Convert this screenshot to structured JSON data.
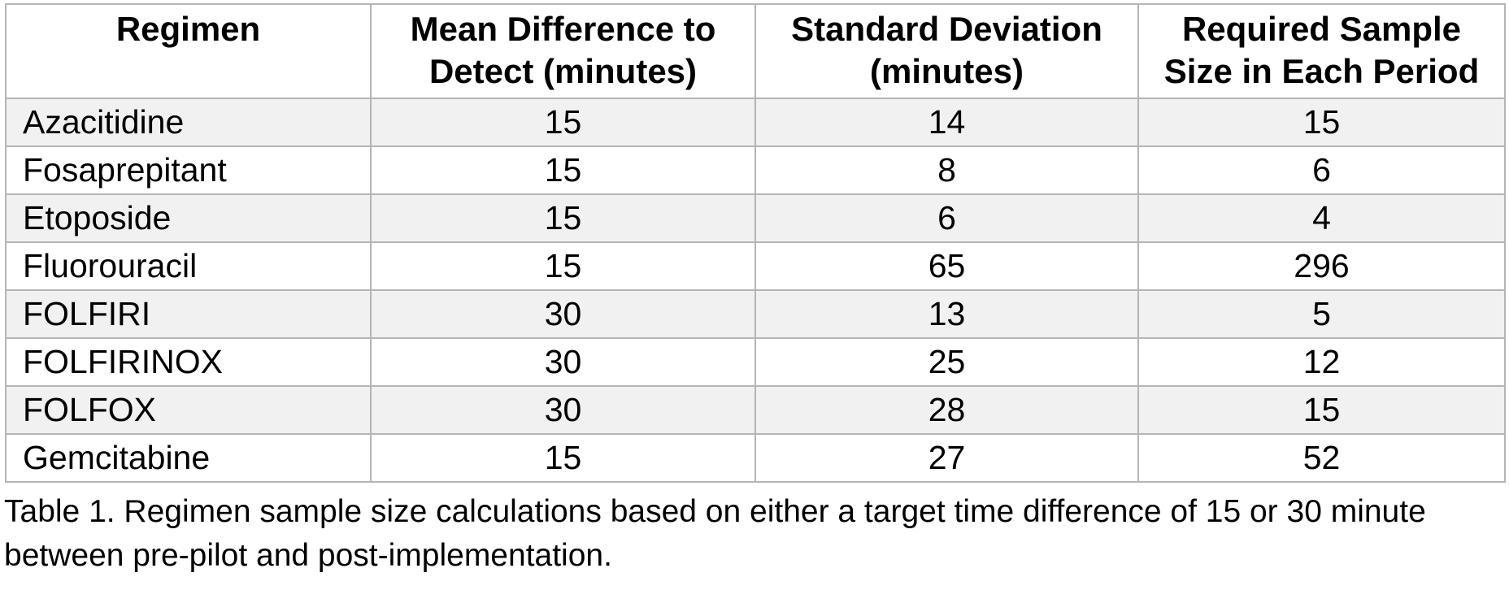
{
  "table": {
    "columns": [
      "Regimen",
      "Mean Difference to Detect (minutes)",
      "Standard Deviation (minutes)",
      "Required Sample Size in Each Period"
    ],
    "rows": [
      {
        "name": "Azacitidine",
        "mean": "15",
        "sd": "14",
        "n": "15"
      },
      {
        "name": "Fosaprepitant",
        "mean": "15",
        "sd": "8",
        "n": "6"
      },
      {
        "name": "Etoposide",
        "mean": "15",
        "sd": "6",
        "n": "4"
      },
      {
        "name": "Fluorouracil",
        "mean": "15",
        "sd": "65",
        "n": "296"
      },
      {
        "name": "FOLFIRI",
        "mean": "30",
        "sd": "13",
        "n": "5"
      },
      {
        "name": "FOLFIRINOX",
        "mean": "30",
        "sd": "25",
        "n": "12"
      },
      {
        "name": "FOLFOX",
        "mean": "30",
        "sd": "28",
        "n": "15"
      },
      {
        "name": "Gemcitabine",
        "mean": "15",
        "sd": "27",
        "n": "52"
      }
    ]
  },
  "caption": "Table 1. Regimen sample size calculations based on either a target time difference of 15 or 30 minute between pre-pilot and post-implementation.",
  "colors": {
    "border": "#b5b5b5",
    "row_shade": "#f1f1f1",
    "text": "#000000",
    "background": "#ffffff"
  }
}
